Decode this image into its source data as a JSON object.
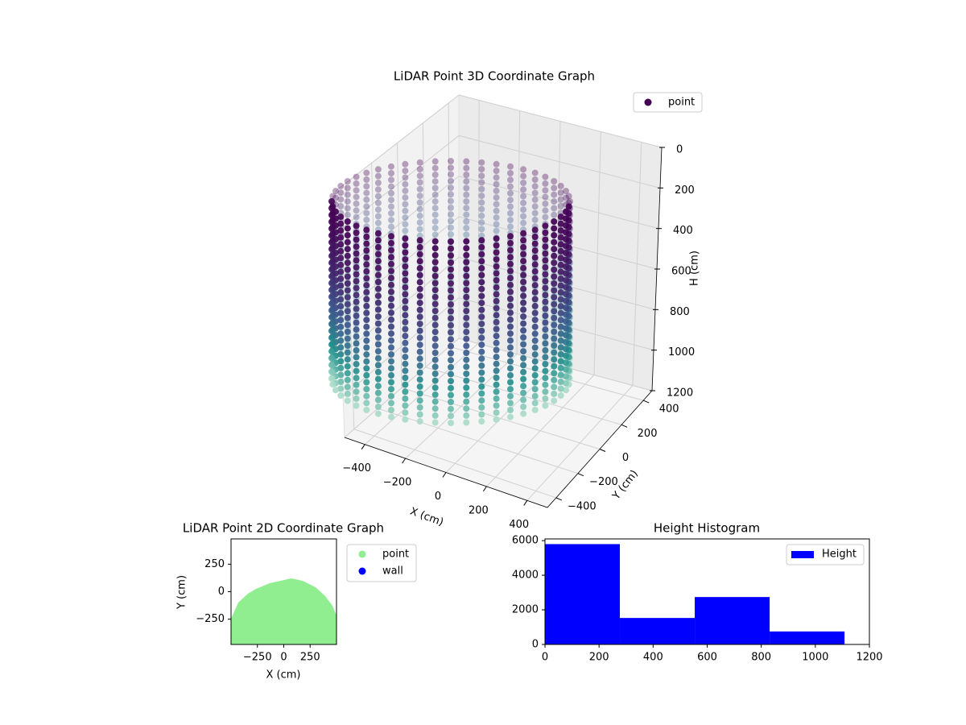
{
  "chart_data": [
    {
      "type": "scatter3d",
      "title": "LiDAR Point 3D Coordinate Graph",
      "x_label": "X (cm)",
      "y_label": "Y (cm)",
      "z_label": "H (cm)",
      "series": [
        {
          "name": "point",
          "color": "#440154"
        }
      ],
      "xlim": [
        -500,
        500
      ],
      "xticks": [
        {
          "value": -400,
          "label": "−400"
        },
        {
          "value": -200,
          "label": "−200"
        },
        0,
        200,
        400
      ],
      "ylim": [
        -480,
        480
      ],
      "yticks": [
        {
          "value": -400,
          "label": "−400"
        },
        {
          "value": -200,
          "label": "−200"
        },
        0,
        200,
        400
      ],
      "zlim": [
        0,
        1200
      ],
      "z_inverted": true,
      "zticks": [
        0,
        200,
        400,
        600,
        800,
        1000,
        1200
      ],
      "grid": true,
      "legend": "upper right"
    },
    {
      "type": "scatter",
      "title": "LiDAR Point 2D Coordinate Graph",
      "x_label": "X (cm)",
      "y_label": "Y (cm)",
      "series": [
        {
          "name": "point",
          "color": "#90ee90"
        },
        {
          "name": "wall",
          "color": "#0000ff"
        }
      ],
      "xlim": [
        -500,
        500
      ],
      "xticks": [
        {
          "value": -250,
          "label": "−250"
        },
        0,
        250
      ],
      "ylim": [
        -480,
        480
      ],
      "yticks": [
        {
          "value": -250,
          "label": "−250"
        },
        0,
        250
      ],
      "legend": "outside right"
    },
    {
      "type": "histogram",
      "title": "Height Histogram",
      "series": [
        {
          "name": "Height",
          "color": "#0000ff"
        }
      ],
      "bins": [
        0,
        277,
        554,
        831,
        1108
      ],
      "values": [
        5800,
        1530,
        2740,
        750
      ],
      "xlim": [
        0,
        1200
      ],
      "xticks": [
        0,
        200,
        400,
        600,
        800,
        1000,
        1200
      ],
      "ylim": [
        0,
        6100
      ],
      "yticks": [
        0,
        2000,
        4000,
        6000
      ],
      "legend": "upper right"
    }
  ]
}
